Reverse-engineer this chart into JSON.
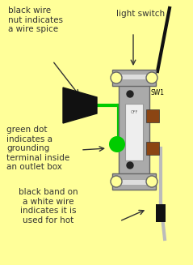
{
  "bg_color": "#FFFF99",
  "label_wire_nut": "black wire\nnut indicates\na wire spice",
  "label_green_dot": "green dot\nindicates a\ngrounding\nterminal inside\nan outlet box",
  "label_black_band": "black band on\na white wire\nindicates it is\nused for hot",
  "label_light_switch": "light switch",
  "switch_color": "#AAAAAA",
  "green_wire_color": "#00CC00",
  "green_dot_color": "#00CC00",
  "white_wire_color": "#BBBBBB",
  "black_color": "#111111",
  "brown_color": "#8B4513",
  "ann_color": "#333333",
  "font_size": 7.5
}
